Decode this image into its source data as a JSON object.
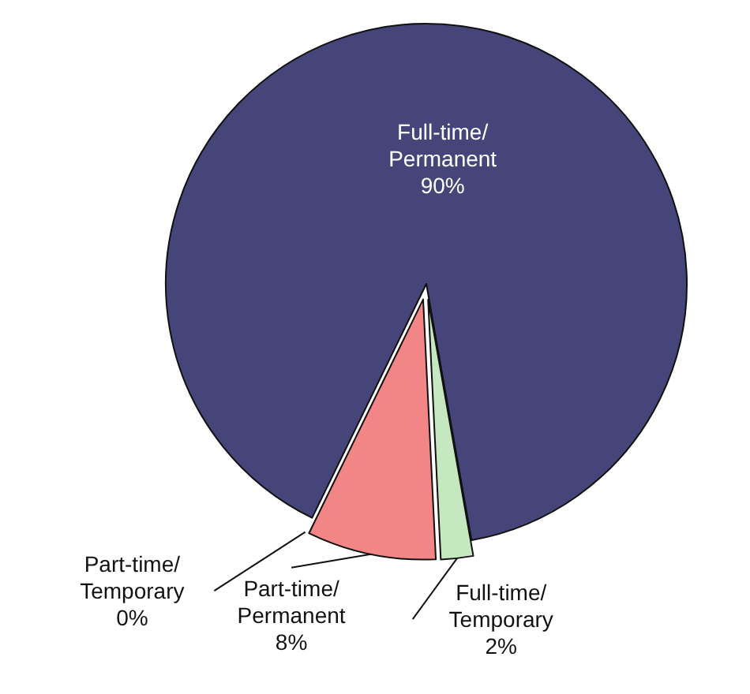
{
  "chart_data": {
    "type": "pie",
    "categories": [
      "Full-time/Permanent",
      "Full-time/Temporary",
      "Part-time/Permanent",
      "Part-time/Temporary"
    ],
    "values": [
      90,
      2,
      8,
      0
    ],
    "colors": [
      "#45457a",
      "#c6e8c0",
      "#f28585",
      null
    ],
    "value_labels": [
      "90%",
      "2%",
      "8%",
      "0%"
    ]
  }
}
